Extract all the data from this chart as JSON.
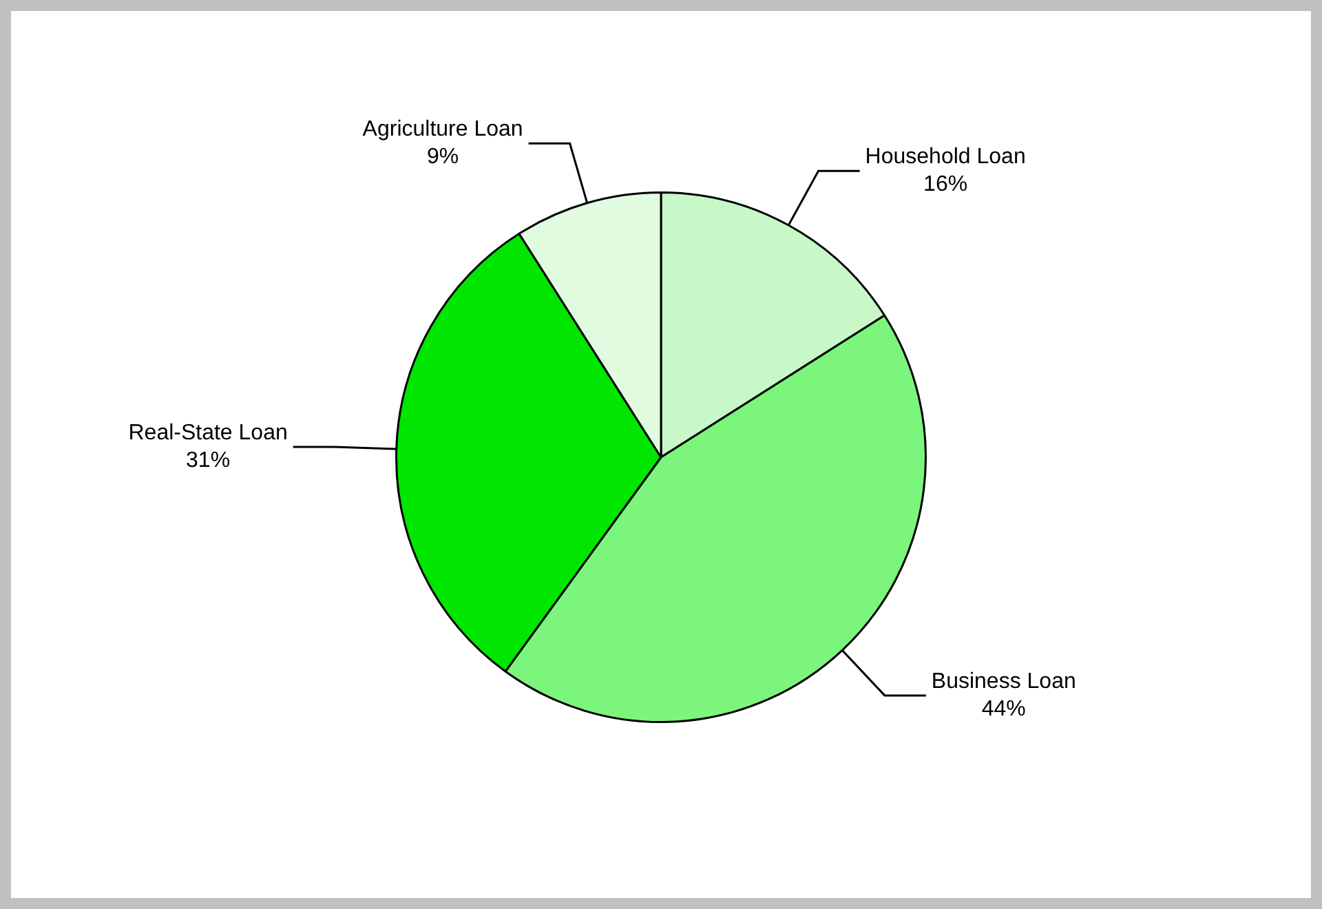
{
  "chart_data": {
    "type": "pie",
    "categories": [
      "Household Loan",
      "Business Loan",
      "Real-State Loan",
      "Agriculture Loan"
    ],
    "values": [
      16,
      44,
      31,
      9
    ],
    "value_labels": [
      "16%",
      "44%",
      "31%",
      "9%"
    ],
    "colors": [
      "#c8f7c8",
      "#7cf57c",
      "#00e600",
      "#e0fbe0"
    ],
    "legend": false
  }
}
